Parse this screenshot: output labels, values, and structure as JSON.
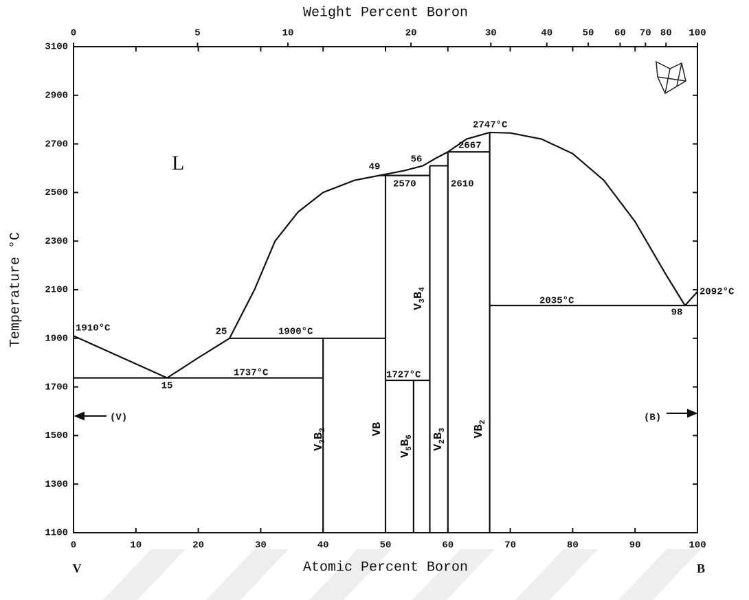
{
  "chart_data": {
    "type": "phase-diagram",
    "title": "Weight Percent Boron",
    "xlabel": "Atomic Percent Boron",
    "ylabel": "Temperature °C",
    "left_element": "V",
    "right_element": "B",
    "xlim": [
      0,
      100
    ],
    "xticks": [
      0,
      10,
      20,
      30,
      40,
      50,
      60,
      70,
      80,
      90,
      100
    ],
    "ylim": [
      1100,
      3100
    ],
    "yticks": [
      1100,
      1300,
      1500,
      1700,
      1900,
      2100,
      2300,
      2500,
      2700,
      2900,
      3100
    ],
    "x2ticks": [
      0,
      5,
      10,
      20,
      30,
      40,
      50,
      60,
      70,
      80,
      100
    ],
    "color": "#111111",
    "lines": [
      {
        "x": [
          0,
          15
        ],
        "values": [
          1910,
          1737
        ]
      },
      {
        "x": [
          15,
          20,
          25,
          29,
          32.3,
          36,
          40,
          45,
          49,
          53,
          56
        ],
        "values": [
          1737,
          1820,
          1900,
          2100,
          2300,
          2420,
          2500,
          2550,
          2570,
          2590,
          2610
        ]
      },
      {
        "x": [
          56,
          58,
          60,
          63,
          66.7,
          70,
          75,
          80,
          85,
          90,
          95,
          98
        ],
        "values": [
          2610,
          2640,
          2667,
          2720,
          2747,
          2745,
          2720,
          2660,
          2550,
          2380,
          2160,
          2035
        ]
      },
      {
        "x": [
          98,
          100
        ],
        "values": [
          2035,
          2092
        ]
      },
      {
        "x": [
          0,
          40
        ],
        "values": [
          1737,
          1737
        ]
      },
      {
        "x": [
          25,
          50
        ],
        "values": [
          1900,
          1900
        ]
      },
      {
        "x": [
          49,
          57.1
        ],
        "values": [
          2570,
          2570
        ]
      },
      {
        "x": [
          57.1,
          60
        ],
        "values": [
          2610,
          2610
        ]
      },
      {
        "x": [
          60,
          66.7
        ],
        "values": [
          2667,
          2667
        ]
      },
      {
        "x": [
          50,
          57.1
        ],
        "values": [
          1727,
          1727
        ]
      },
      {
        "x": [
          66.7,
          100
        ],
        "values": [
          2035,
          2035
        ]
      },
      {
        "x": [
          40,
          40
        ],
        "values": [
          1100,
          1900
        ]
      },
      {
        "x": [
          50,
          50
        ],
        "values": [
          1100,
          2570
        ]
      },
      {
        "x": [
          54.5,
          54.5
        ],
        "values": [
          1100,
          1727
        ]
      },
      {
        "x": [
          57.1,
          57.1
        ],
        "values": [
          1100,
          2610
        ]
      },
      {
        "x": [
          60,
          60
        ],
        "values": [
          1100,
          2667
        ]
      },
      {
        "x": [
          66.7,
          66.7
        ],
        "values": [
          1100,
          2747
        ]
      }
    ],
    "annotations": [
      "L",
      "1910°C",
      "15",
      "1737°C",
      "25",
      "1900°C",
      "49",
      "56",
      "2570",
      "2610",
      "2667",
      "2747°C",
      "2035°C",
      "98",
      "2092°C",
      "1727°C",
      "(V)",
      "(B)"
    ],
    "phases": [
      [
        "V",
        "3",
        "B",
        "2"
      ],
      [
        "VB"
      ],
      [
        "V",
        "5",
        "B",
        "6"
      ],
      [
        "V",
        "3",
        "B",
        "4"
      ],
      [
        "V",
        "2",
        "B",
        "3"
      ],
      [
        "VB",
        "2"
      ]
    ]
  }
}
